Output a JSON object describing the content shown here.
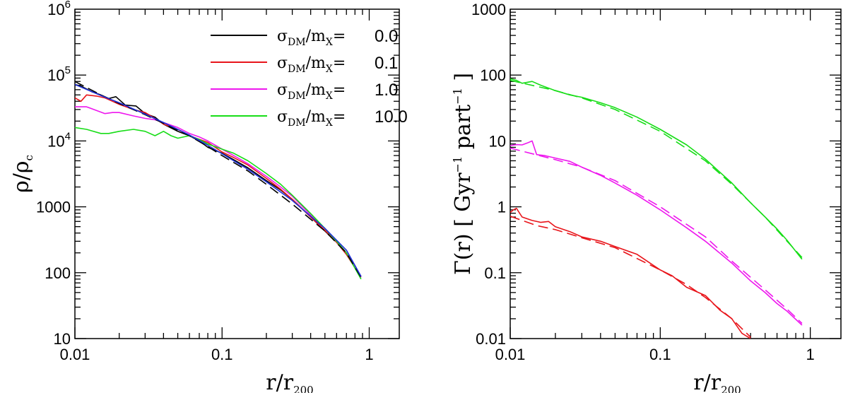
{
  "chart_data": [
    {
      "type": "line",
      "panel": "left",
      "xlabel": "r/r_200",
      "ylabel": "ρ/ρ_c",
      "xscale": "log",
      "yscale": "log",
      "xlim": [
        0.01,
        1.6
      ],
      "ylim": [
        10,
        1000000
      ],
      "x_ticks": [
        "0.01",
        "0.1",
        "1"
      ],
      "y_ticks": [
        "10",
        "100",
        "1000",
        "10^4",
        "10^5",
        "10^6"
      ],
      "legend": {
        "placement": "top-right",
        "entries": [
          {
            "label": "σ_DM/m_X=",
            "value": "0.0",
            "color": "#000000"
          },
          {
            "label": "σ_DM/m_X=",
            "value": "0.1",
            "color": "#e8141a"
          },
          {
            "label": "σ_DM/m_X=",
            "value": "1.0",
            "color": "#ee17ee"
          },
          {
            "label": "σ_DM/m_X=",
            "value": "10.0",
            "color": "#17dd17"
          }
        ]
      },
      "series": [
        {
          "name": "black solid (σ=0.0)",
          "color": "#000000",
          "dash": false,
          "x": [
            0.01,
            0.011,
            0.013,
            0.015,
            0.017,
            0.019,
            0.022,
            0.026,
            0.03,
            0.035,
            0.04,
            0.05,
            0.06,
            0.07,
            0.08,
            0.1,
            0.12,
            0.15,
            0.2,
            0.25,
            0.3,
            0.4,
            0.5,
            0.6,
            0.7,
            0.88
          ],
          "y": [
            72000,
            68000,
            56000,
            50000,
            44000,
            47000,
            35000,
            34000,
            26000,
            23000,
            18000,
            14000,
            12000,
            10000,
            8000,
            6500,
            5200,
            3900,
            2500,
            1800,
            1300,
            700,
            430,
            290,
            190,
            88
          ]
        },
        {
          "name": "red solid (σ=0.1)",
          "color": "#e8141a",
          "dash": false,
          "x": [
            0.01,
            0.011,
            0.012,
            0.014,
            0.016,
            0.018,
            0.02,
            0.025,
            0.03,
            0.035,
            0.04,
            0.05,
            0.06,
            0.08,
            0.1,
            0.12,
            0.15,
            0.2,
            0.25,
            0.3,
            0.4,
            0.5,
            0.6,
            0.7,
            0.88
          ],
          "y": [
            45000,
            40000,
            50000,
            48000,
            45000,
            40000,
            36000,
            30000,
            27000,
            22000,
            18000,
            15000,
            12000,
            9500,
            6800,
            5600,
            4300,
            2700,
            1850,
            1300,
            700,
            440,
            290,
            190,
            85
          ]
        },
        {
          "name": "magenta solid (σ=1.0)",
          "color": "#ee17ee",
          "dash": false,
          "x": [
            0.01,
            0.012,
            0.014,
            0.016,
            0.018,
            0.02,
            0.025,
            0.03,
            0.035,
            0.04,
            0.05,
            0.06,
            0.07,
            0.08,
            0.1,
            0.12,
            0.15,
            0.2,
            0.25,
            0.3,
            0.4,
            0.5,
            0.6,
            0.7,
            0.88
          ],
          "y": [
            33000,
            33000,
            29000,
            26000,
            27000,
            27000,
            24000,
            22000,
            21000,
            19000,
            16000,
            13000,
            11500,
            10000,
            7500,
            6000,
            4500,
            2900,
            2000,
            1450,
            750,
            470,
            300,
            200,
            85
          ]
        },
        {
          "name": "green solid (σ=10.0)",
          "color": "#17dd17",
          "dash": false,
          "x": [
            0.01,
            0.012,
            0.015,
            0.017,
            0.02,
            0.025,
            0.03,
            0.035,
            0.04,
            0.045,
            0.05,
            0.06,
            0.07,
            0.08,
            0.1,
            0.12,
            0.15,
            0.2,
            0.25,
            0.3,
            0.4,
            0.5,
            0.6,
            0.7,
            0.88
          ],
          "y": [
            16000,
            15000,
            13000,
            13000,
            14000,
            15000,
            14000,
            12000,
            14000,
            12000,
            11000,
            12000,
            10500,
            9000,
            7500,
            6500,
            5000,
            3200,
            2200,
            1500,
            790,
            470,
            300,
            200,
            80
          ]
        },
        {
          "name": "black dashed fit",
          "color": "#000000",
          "dash": true,
          "x": [
            0.01,
            0.015,
            0.02,
            0.03,
            0.04,
            0.05,
            0.06,
            0.08,
            0.1,
            0.15,
            0.2,
            0.3,
            0.5,
            0.7,
            0.88
          ],
          "y": [
            80000,
            50000,
            37000,
            25000,
            18500,
            14500,
            12000,
            8200,
            6000,
            3500,
            2200,
            1100,
            430,
            200,
            85
          ]
        },
        {
          "name": "blue fit",
          "color": "#1f2fd8",
          "dash": false,
          "x": [
            0.01,
            0.015,
            0.02,
            0.03,
            0.04,
            0.05,
            0.06,
            0.08,
            0.1,
            0.15,
            0.2,
            0.3,
            0.5,
            0.7,
            0.88
          ],
          "y": [
            72000,
            49000,
            38000,
            25500,
            19000,
            15000,
            12300,
            8600,
            6400,
            3700,
            2400,
            1250,
            470,
            220,
            88
          ]
        }
      ]
    },
    {
      "type": "line",
      "panel": "right",
      "xlabel": "r/r_200",
      "ylabel": "Γ(r) [ Gyr^-1 part^-1 ]",
      "xscale": "log",
      "yscale": "log",
      "xlim": [
        0.01,
        1.6
      ],
      "ylim": [
        0.01,
        1000
      ],
      "x_ticks": [
        "0.01",
        "0.1",
        "1"
      ],
      "y_ticks": [
        "0.01",
        "0.1",
        "1",
        "10",
        "100",
        "1000"
      ],
      "series": [
        {
          "name": "green solid",
          "color": "#17dd17",
          "dash": false,
          "x": [
            0.01,
            0.011,
            0.012,
            0.014,
            0.016,
            0.02,
            0.025,
            0.03,
            0.04,
            0.05,
            0.07,
            0.1,
            0.15,
            0.2,
            0.3,
            0.4,
            0.5,
            0.6,
            0.7,
            0.88
          ],
          "y": [
            88,
            83,
            75,
            80,
            70,
            58,
            50,
            46,
            38,
            32,
            23,
            15,
            8.7,
            5.3,
            2.3,
            1.15,
            0.7,
            0.46,
            0.31,
            0.16
          ]
        },
        {
          "name": "green dashed",
          "color": "#17dd17",
          "dash": true,
          "x": [
            0.01,
            0.02,
            0.03,
            0.05,
            0.1,
            0.2,
            0.3,
            0.5,
            0.7,
            0.88
          ],
          "y": [
            83,
            58,
            45,
            30,
            14,
            5,
            2.2,
            0.7,
            0.3,
            0.17
          ]
        },
        {
          "name": "magenta solid",
          "color": "#ee17ee",
          "dash": false,
          "x": [
            0.01,
            0.011,
            0.012,
            0.013,
            0.014,
            0.015,
            0.017,
            0.02,
            0.025,
            0.03,
            0.04,
            0.05,
            0.07,
            0.1,
            0.15,
            0.2,
            0.3,
            0.4,
            0.5,
            0.6,
            0.7,
            0.88
          ],
          "y": [
            8.5,
            8.8,
            8.7,
            9.3,
            10,
            6.2,
            6,
            5.5,
            4.9,
            4,
            3,
            2.3,
            1.5,
            0.9,
            0.48,
            0.3,
            0.14,
            0.075,
            0.05,
            0.034,
            0.026,
            0.016
          ]
        },
        {
          "name": "magenta dashed",
          "color": "#ee17ee",
          "dash": true,
          "x": [
            0.01,
            0.02,
            0.03,
            0.05,
            0.1,
            0.2,
            0.3,
            0.5,
            0.7,
            0.88
          ],
          "y": [
            7.8,
            5.2,
            4,
            2.5,
            1,
            0.35,
            0.15,
            0.055,
            0.028,
            0.017
          ]
        },
        {
          "name": "red solid",
          "color": "#e8141a",
          "dash": false,
          "x": [
            0.01,
            0.0105,
            0.011,
            0.012,
            0.014,
            0.016,
            0.018,
            0.02,
            0.025,
            0.03,
            0.04,
            0.05,
            0.07,
            0.1,
            0.12,
            0.15,
            0.2,
            0.25,
            0.3,
            0.35,
            0.4
          ],
          "y": [
            0.82,
            0.9,
            0.95,
            0.7,
            0.62,
            0.58,
            0.6,
            0.5,
            0.42,
            0.35,
            0.3,
            0.25,
            0.19,
            0.11,
            0.09,
            0.06,
            0.045,
            0.027,
            0.02,
            0.012,
            0.01
          ]
        },
        {
          "name": "red dashed",
          "color": "#e8141a",
          "dash": true,
          "x": [
            0.01,
            0.015,
            0.02,
            0.03,
            0.05,
            0.1,
            0.15,
            0.2,
            0.3,
            0.4
          ],
          "y": [
            0.72,
            0.52,
            0.45,
            0.34,
            0.24,
            0.11,
            0.066,
            0.042,
            0.02,
            0.0105
          ]
        }
      ]
    }
  ]
}
